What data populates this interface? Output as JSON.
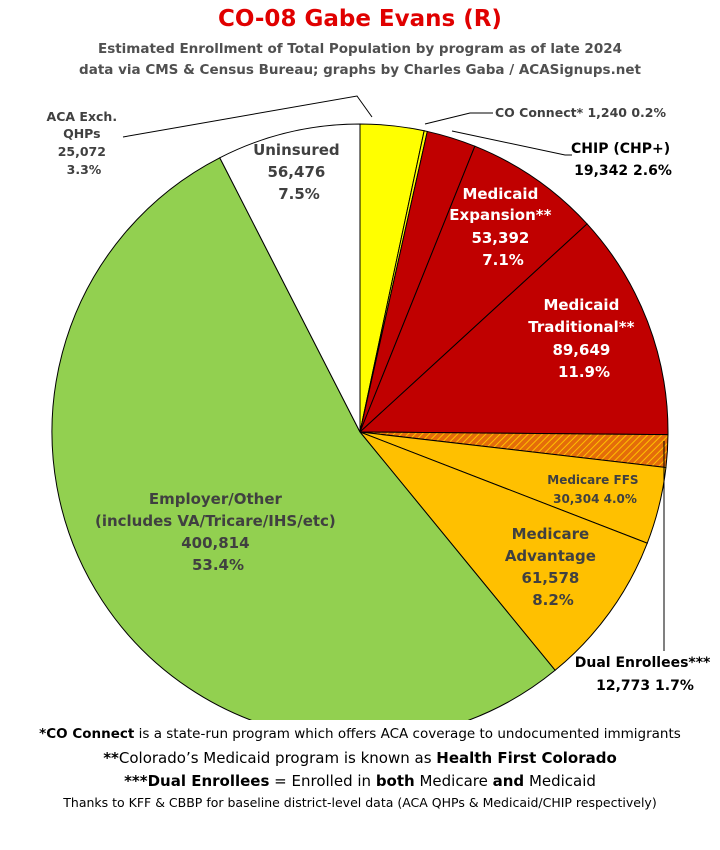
{
  "title": "CO-08 Gabe Evans (R)",
  "subtitle_line1": "Estimated Enrollment of Total Population by program as of late 2024",
  "subtitle_line2": "data via CMS & Census Bureau; graphs by Charles Gaba / ACASignups.net",
  "chart_data": {
    "type": "pie",
    "title": "CO-08 Gabe Evans (R)",
    "slices": [
      {
        "label": "ACA Exch. QHPs",
        "value": 25072,
        "percent": "3.3%",
        "color": "#ffff00"
      },
      {
        "label": "CO Connect*",
        "value": 1240,
        "percent": "0.2%",
        "color": "#ffff00"
      },
      {
        "label": "CHIP (CHP+)",
        "value": 19342,
        "percent": "2.6%",
        "color": "#c00000"
      },
      {
        "label": "Medicaid Expansion**",
        "value": 53392,
        "percent": "7.1%",
        "color": "#c00000"
      },
      {
        "label": "Medicaid Traditional**",
        "value": 89649,
        "percent": "11.9%",
        "color": "#c00000"
      },
      {
        "label": "Dual Enrollees***",
        "value": 12773,
        "percent": "1.7%",
        "color": "#e46c0a"
      },
      {
        "label": "Medicare FFS",
        "value": 30304,
        "percent": "4.0%",
        "color": "#ffc000"
      },
      {
        "label": "Medicare Advantage",
        "value": 61578,
        "percent": "8.2%",
        "color": "#ffc000"
      },
      {
        "label": "Employer/Other (includes VA/Tricare/IHS/etc)",
        "value": 400814,
        "percent": "53.4%",
        "color": "#92d050"
      },
      {
        "label": "Uninsured",
        "value": 56476,
        "percent": "7.5%",
        "color": "#ffffff"
      }
    ]
  },
  "labels": {
    "aca": {
      "line1": "ACA Exch.",
      "line2": "QHPs",
      "line3": "25,072",
      "line4": "3.3%"
    },
    "coconnect": {
      "line1": "CO Connect* 1,240 0.2%"
    },
    "chip": {
      "line1": "CHIP (CHP+)",
      "line2": "19,342 2.6%"
    },
    "expansion": {
      "line1": "Medicaid",
      "line2": "Expansion**",
      "line3": "53,392",
      "line4": "7.1%"
    },
    "traditional": {
      "line1": "Medicaid",
      "line2": "Traditional**",
      "line3": "89,649",
      "line4": "11.9%"
    },
    "dual": {
      "line1": "Dual Enrollees***",
      "line2": "12,773 1.7%"
    },
    "ffs": {
      "line1": "Medicare FFS",
      "line2": "30,304 4.0%"
    },
    "advantage": {
      "line1": "Medicare",
      "line2": "Advantage",
      "line3": "61,578",
      "line4": "8.2%"
    },
    "employer": {
      "line1": "Employer/Other",
      "line2": "(includes VA/Tricare/IHS/etc)",
      "line3": "400,814",
      "line4": "53.4%"
    },
    "uninsured": {
      "line1": "Uninsured",
      "line2": "56,476",
      "line3": "7.5%"
    }
  },
  "footnotes": {
    "f1_bold": "*CO Connect",
    "f1_rest": " is a state-run program which offers ACA coverage to undocumented immigrants",
    "f2_a": "**",
    "f2_b": "Colorado’s Medicaid program is known as ",
    "f2_c": "Health First Colorado",
    "f3_a": "***Dual Enrollees",
    "f3_b": " = Enrolled in ",
    "f3_c": "both",
    "f3_d": " Medicare ",
    "f3_e": "and",
    "f3_f": " Medicaid",
    "f4": "Thanks to KFF & CBBP for baseline district-level data (ACA QHPs & Medicaid/CHIP respectively)"
  }
}
